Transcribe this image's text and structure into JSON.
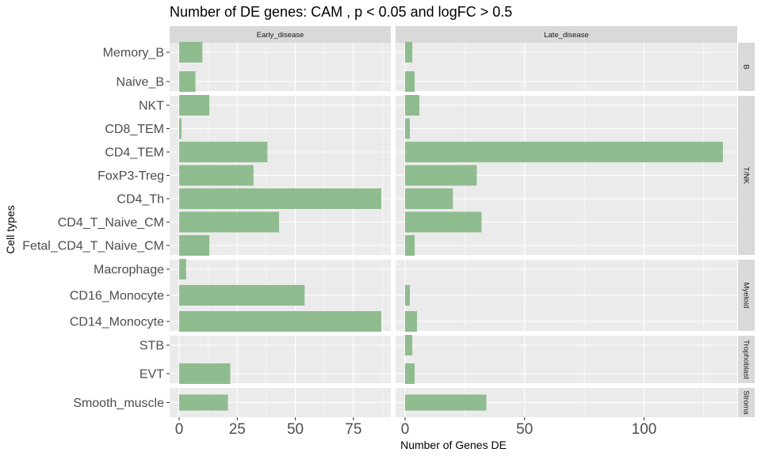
{
  "chart_data": {
    "type": "bar",
    "orientation": "horizontal",
    "title": "Number of DE genes: CAM , p < 0.05 and logFC > 0.5",
    "xlabel": "Number of Genes DE",
    "ylabel": "Cell types",
    "bar_color": "#8fbc8f",
    "panel_color": "#ebebeb",
    "strip_color": "#d9d9d9",
    "grid": true,
    "columns": [
      {
        "name": "Early_disease",
        "xlim": [
          0,
          87
        ],
        "ticks": [
          0,
          25,
          50,
          75
        ],
        "tick_labels": [
          "0",
          "25",
          "50",
          "75"
        ]
      },
      {
        "name": "Late_disease",
        "xlim": [
          0,
          135
        ],
        "ticks": [
          0,
          50,
          100
        ],
        "tick_labels": [
          "0",
          "50",
          "100"
        ]
      }
    ],
    "rows": [
      {
        "name": "B",
        "categories": [
          "Memory_B",
          "Naive_B"
        ]
      },
      {
        "name": "T/NK",
        "categories": [
          "NKT",
          "CD8_TEM",
          "CD4_TEM",
          "FoxP3-Treg",
          "CD4_Th",
          "CD4_T_Naive_CM",
          "Fetal_CD4_T_Naive_CM"
        ]
      },
      {
        "name": "Myeloid",
        "categories": [
          "Macrophage",
          "CD16_Monocyte",
          "CD14_Monocyte"
        ]
      },
      {
        "name": "Trophoblast",
        "categories": [
          "STB",
          "EVT"
        ]
      },
      {
        "name": "Stroma",
        "categories": [
          "Smooth_muscle"
        ]
      }
    ],
    "values": {
      "Early_disease": {
        "Memory_B": 10,
        "Naive_B": 7,
        "NKT": 13,
        "CD8_TEM": 1,
        "CD4_TEM": 38,
        "FoxP3-Treg": 32,
        "CD4_Th": 87,
        "CD4_T_Naive_CM": 43,
        "Fetal_CD4_T_Naive_CM": 13,
        "Macrophage": 3,
        "CD16_Monocyte": 54,
        "CD14_Monocyte": 87,
        "STB": 0,
        "EVT": 22,
        "Smooth_muscle": 21
      },
      "Late_disease": {
        "Memory_B": 3,
        "Naive_B": 4,
        "NKT": 6,
        "CD8_TEM": 2,
        "CD4_TEM": 133,
        "FoxP3-Treg": 30,
        "CD4_Th": 20,
        "CD4_T_Naive_CM": 32,
        "Fetal_CD4_T_Naive_CM": 4,
        "Macrophage": 0,
        "CD16_Monocyte": 2,
        "CD14_Monocyte": 5,
        "STB": 3,
        "EVT": 4,
        "Smooth_muscle": 34
      }
    }
  }
}
